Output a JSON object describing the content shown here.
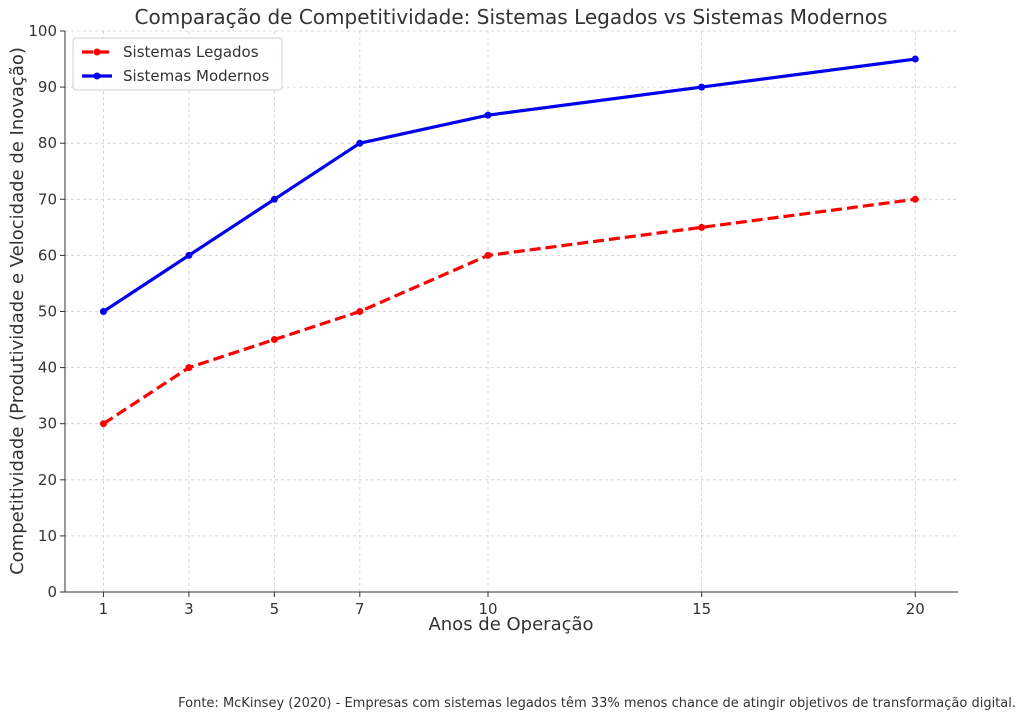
{
  "chart_data": {
    "type": "line",
    "title": "Comparação de Competitividade: Sistemas Legados vs Sistemas Modernos",
    "xlabel": "Anos de Operação",
    "ylabel": "Competitividade (Produtividade e Velocidade de Inovação)",
    "x": [
      1,
      3,
      5,
      7,
      10,
      15,
      20
    ],
    "x_ticks": [
      "1",
      "3",
      "5",
      "7",
      "10",
      "15",
      "20"
    ],
    "y_ticks": [
      "0",
      "10",
      "20",
      "30",
      "40",
      "50",
      "60",
      "70",
      "80",
      "90",
      "100"
    ],
    "ylim": [
      0,
      100
    ],
    "xlim": [
      0.1,
      21
    ],
    "grid": true,
    "legend_position": "top-left",
    "series": [
      {
        "name": "Sistemas Legados",
        "values": [
          30,
          40,
          45,
          50,
          60,
          65,
          70
        ],
        "color": "#ff0000",
        "style": "dashed",
        "marker": "circle"
      },
      {
        "name": "Sistemas Modernos",
        "values": [
          50,
          60,
          70,
          80,
          85,
          90,
          95
        ],
        "color": "#0000ee",
        "style": "solid",
        "marker": "circle"
      }
    ]
  },
  "footer": {
    "source": "Fonte: McKinsey (2020) - Empresas com sistemas legados têm 33% menos chance de atingir objetivos de transformação digital."
  }
}
